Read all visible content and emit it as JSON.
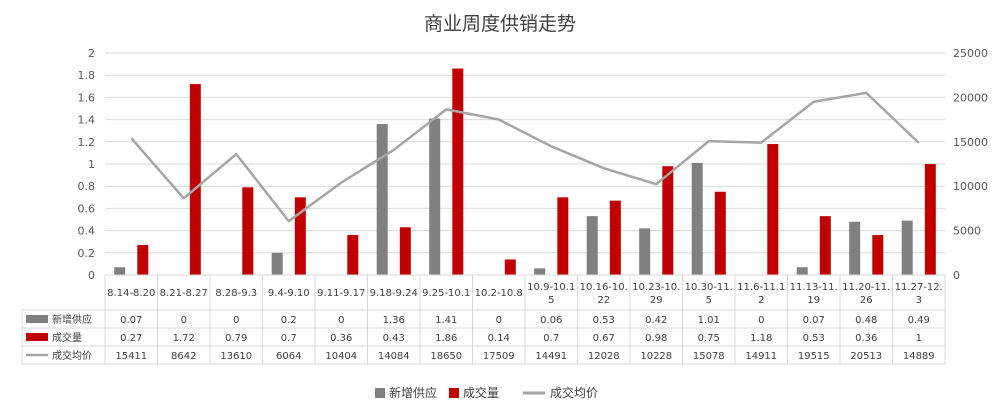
{
  "chart_data": {
    "type": "bar",
    "title": "商业周度供销走势",
    "categories": [
      [
        "8.14-8.20"
      ],
      [
        "8.21-8.27"
      ],
      [
        "8.28-9.3"
      ],
      [
        "9.4-9.10"
      ],
      [
        "9.11-9.17"
      ],
      [
        "9.18-9.24"
      ],
      [
        "9.25-10.1"
      ],
      [
        "10.2-10.8"
      ],
      [
        "10.9-10.1",
        "5"
      ],
      [
        "10.16-10.",
        "22"
      ],
      [
        "10.23-10.",
        "29"
      ],
      [
        "10.30-11.",
        "5"
      ],
      [
        "11.6-11.1",
        "2"
      ],
      [
        "11.13-11.",
        "19"
      ],
      [
        "11.20-11.",
        "26"
      ],
      [
        "11.27-12.",
        "3"
      ]
    ],
    "y_left": {
      "ticks": [
        "0",
        "0.2",
        "0.4",
        "0.6",
        "0.8",
        "1",
        "1.2",
        "1.4",
        "1.6",
        "1.8",
        "2"
      ],
      "ylim": [
        0,
        2
      ]
    },
    "y_right": {
      "ticks": [
        "0",
        "5000",
        "10000",
        "15000",
        "20000",
        "25000"
      ],
      "ylim": [
        0,
        25000
      ]
    },
    "series": [
      {
        "name": "新增供应",
        "type": "bar",
        "axis": "left",
        "color": "#808080",
        "values": [
          0.07,
          0,
          0,
          0.2,
          0,
          1.36,
          1.41,
          0,
          0.06,
          0.53,
          0.42,
          1.01,
          0,
          0.07,
          0.48,
          0.49
        ],
        "labels": [
          "0.07",
          "0",
          "0",
          "0.2",
          "0",
          "1.36",
          "1.41",
          "0",
          "0.06",
          "0.53",
          "0.42",
          "1.01",
          "0",
          "0.07",
          "0.48",
          "0.49"
        ]
      },
      {
        "name": "成交量",
        "type": "bar",
        "axis": "left",
        "color": "#c00000",
        "values": [
          0.27,
          1.72,
          0.79,
          0.7,
          0.36,
          0.43,
          1.86,
          0.14,
          0.7,
          0.67,
          0.98,
          0.75,
          1.18,
          0.53,
          0.36,
          1
        ],
        "labels": [
          "0.27",
          "1.72",
          "0.79",
          "0.7",
          "0.36",
          "0.43",
          "1.86",
          "0.14",
          "0.7",
          "0.67",
          "0.98",
          "0.75",
          "1.18",
          "0.53",
          "0.36",
          "1"
        ]
      },
      {
        "name": "成交均价",
        "type": "line",
        "axis": "right",
        "color": "#a6a6a6",
        "values": [
          15411,
          8642,
          13610,
          6064,
          10404,
          14084,
          18650,
          17509,
          14491,
          12028,
          10228,
          15078,
          14911,
          19515,
          20513,
          14889
        ],
        "labels": [
          "15411",
          "8642",
          "13610",
          "6064",
          "10404",
          "14084",
          "18650",
          "17509",
          "14491",
          "12028",
          "10228",
          "15078",
          "14911",
          "19515",
          "20513",
          "14889"
        ]
      }
    ],
    "grid": true,
    "legend": "bottom",
    "data_table": true
  }
}
